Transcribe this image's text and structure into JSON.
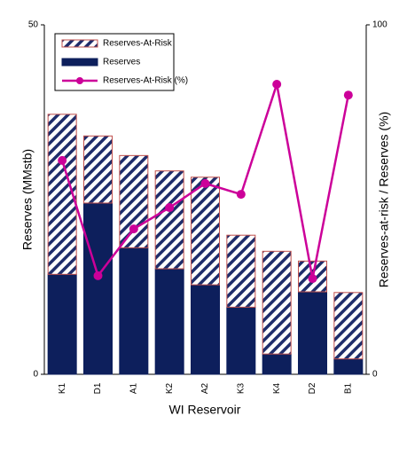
{
  "chart_data": {
    "type": "bar",
    "stacked": true,
    "categories": [
      "K1",
      "D1",
      "A1",
      "K2",
      "A2",
      "K3",
      "K4",
      "D2",
      "B1"
    ],
    "series": [
      {
        "name": "Reserves-At-Risk",
        "color": "#1f2d6b",
        "edgecolor": "#c0504d",
        "hatch": true,
        "values": [
          22.9,
          9.6,
          13.2,
          14.0,
          15.4,
          10.3,
          14.7,
          4.4,
          9.5
        ]
      },
      {
        "name": "Reserves",
        "color": "#0d1f5c",
        "values": [
          14.3,
          24.5,
          18.1,
          15.1,
          12.8,
          9.6,
          2.9,
          11.8,
          2.2
        ]
      },
      {
        "name": "Reserves-At-Risk (%)",
        "type": "line",
        "axis": "y2",
        "color": "#cc0099",
        "values": [
          61.2,
          28.2,
          41.6,
          47.7,
          54.6,
          51.5,
          83.0,
          27.4,
          79.9
        ]
      }
    ],
    "xlabel": "WI Reservoir",
    "ylabel": "Reserves (MMstb)",
    "y2label": "Reserves-at-risk / Reserves (%)",
    "ylim": [
      0,
      50
    ],
    "yticks": [
      0,
      50
    ],
    "y2lim": [
      0,
      100
    ],
    "y2ticks": [
      0,
      100
    ],
    "grid": false,
    "legend": "upper left"
  }
}
